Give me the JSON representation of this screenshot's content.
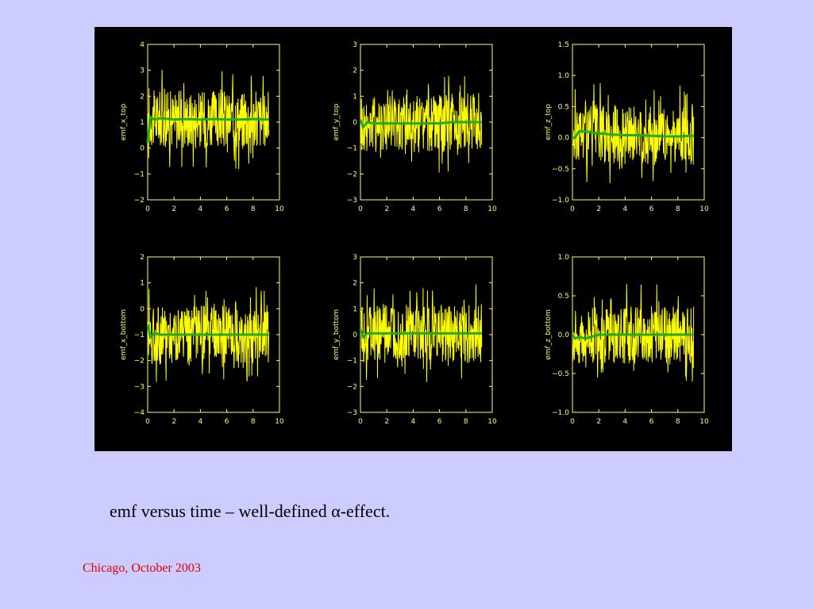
{
  "caption": "emf versus time – well-defined α-effect.",
  "footer": "Chicago, October 2003",
  "colors": {
    "background": "#ccccff",
    "figure_background": "#000000",
    "axes": "#ffff66",
    "signal": "#ffff00",
    "mean": "#22aa22",
    "footer_text": "#dd0000"
  },
  "chart_data": [
    {
      "type": "line",
      "ylabel": "emf_x_top",
      "xlim": [
        0,
        10
      ],
      "ylim": [
        -2,
        4
      ],
      "xticks": [
        "0",
        "2",
        "4",
        "6",
        "8",
        "10"
      ],
      "yticks": [
        "−2",
        "−1",
        "0",
        "1",
        "2",
        "3",
        "4"
      ],
      "series": [
        {
          "x": [
            0,
            0.2,
            0.5,
            1,
            2,
            3,
            4,
            5,
            6,
            7,
            8,
            9,
            9.2
          ],
          "y": [
            0.2,
            1.2,
            1.1,
            1.15,
            1.1,
            1.12,
            1.1,
            1.12,
            1.1,
            1.1,
            1.12,
            1.1,
            1.1
          ]
        }
      ]
    },
    {
      "type": "line",
      "ylabel": "emf_y_top",
      "xlim": [
        0,
        10
      ],
      "ylim": [
        -3,
        3
      ],
      "xticks": [
        "0",
        "2",
        "4",
        "6",
        "8",
        "10"
      ],
      "yticks": [
        "−3",
        "−2",
        "−1",
        "0",
        "1",
        "2",
        "3"
      ],
      "series": [
        {
          "x": [
            0,
            0.2,
            0.5,
            1,
            2,
            3,
            4,
            5,
            6,
            7,
            8,
            9,
            9.2
          ],
          "y": [
            0.1,
            -0.2,
            0,
            -0.05,
            -0.05,
            -0.05,
            -0.05,
            -0.05,
            -0.05,
            0,
            0,
            0,
            0
          ]
        }
      ]
    },
    {
      "type": "line",
      "ylabel": "emf_z_top",
      "xlim": [
        0,
        10
      ],
      "ylim": [
        -1,
        1.5
      ],
      "xticks": [
        "0",
        "2",
        "4",
        "6",
        "8",
        "10"
      ],
      "yticks": [
        "−1.0",
        "−0.5",
        "0.0",
        "0.5",
        "1.0",
        "1.5"
      ],
      "series": [
        {
          "x": [
            0,
            0.2,
            0.5,
            1,
            2,
            3,
            4,
            5,
            6,
            7,
            8,
            9,
            9.2
          ],
          "y": [
            0,
            0,
            0.1,
            0.1,
            0.07,
            0.05,
            0.04,
            0.04,
            0.03,
            0.02,
            0.02,
            0.03,
            0.03
          ]
        }
      ]
    },
    {
      "type": "line",
      "ylabel": "emf_x_bottom",
      "xlim": [
        0,
        10
      ],
      "ylim": [
        -4,
        2
      ],
      "xticks": [
        "0",
        "2",
        "4",
        "6",
        "8",
        "10"
      ],
      "yticks": [
        "−4",
        "−3",
        "−2",
        "−1",
        "0",
        "1",
        "2"
      ],
      "series": [
        {
          "x": [
            0,
            0.2,
            0.5,
            1,
            2,
            3,
            4,
            5,
            6,
            7,
            8,
            9,
            9.2
          ],
          "y": [
            -0.6,
            -1.1,
            -0.95,
            -1,
            -1,
            -1,
            -1,
            -1,
            -1,
            -1,
            -1,
            -1,
            -1
          ]
        }
      ]
    },
    {
      "type": "line",
      "ylabel": "emf_y_bottom",
      "xlim": [
        0,
        10
      ],
      "ylim": [
        -3,
        3
      ],
      "xticks": [
        "0",
        "2",
        "4",
        "6",
        "8",
        "10"
      ],
      "yticks": [
        "−3",
        "−2",
        "−1",
        "0",
        "1",
        "2",
        "3"
      ],
      "series": [
        {
          "x": [
            0,
            0.2,
            0.5,
            1,
            2,
            3,
            4,
            5,
            6,
            7,
            8,
            9,
            9.2
          ],
          "y": [
            0.2,
            -0.1,
            0.05,
            0.05,
            0.05,
            0.05,
            0.05,
            0.05,
            0.05,
            0.05,
            0.05,
            0.05,
            0.05
          ]
        }
      ]
    },
    {
      "type": "line",
      "ylabel": "emf_z_bottom",
      "xlim": [
        0,
        10
      ],
      "ylim": [
        -1,
        1
      ],
      "xticks": [
        "0",
        "2",
        "4",
        "6",
        "8",
        "10"
      ],
      "yticks": [
        "−1.0",
        "−0.5",
        "0.0",
        "0.5",
        "1.0"
      ],
      "series": [
        {
          "x": [
            0,
            0.2,
            0.5,
            1,
            2,
            3,
            4,
            5,
            6,
            7,
            8,
            9,
            9.2
          ],
          "y": [
            0,
            -0.05,
            -0.03,
            -0.05,
            0,
            0,
            0,
            0,
            0,
            0,
            0,
            0,
            0
          ]
        }
      ]
    }
  ]
}
